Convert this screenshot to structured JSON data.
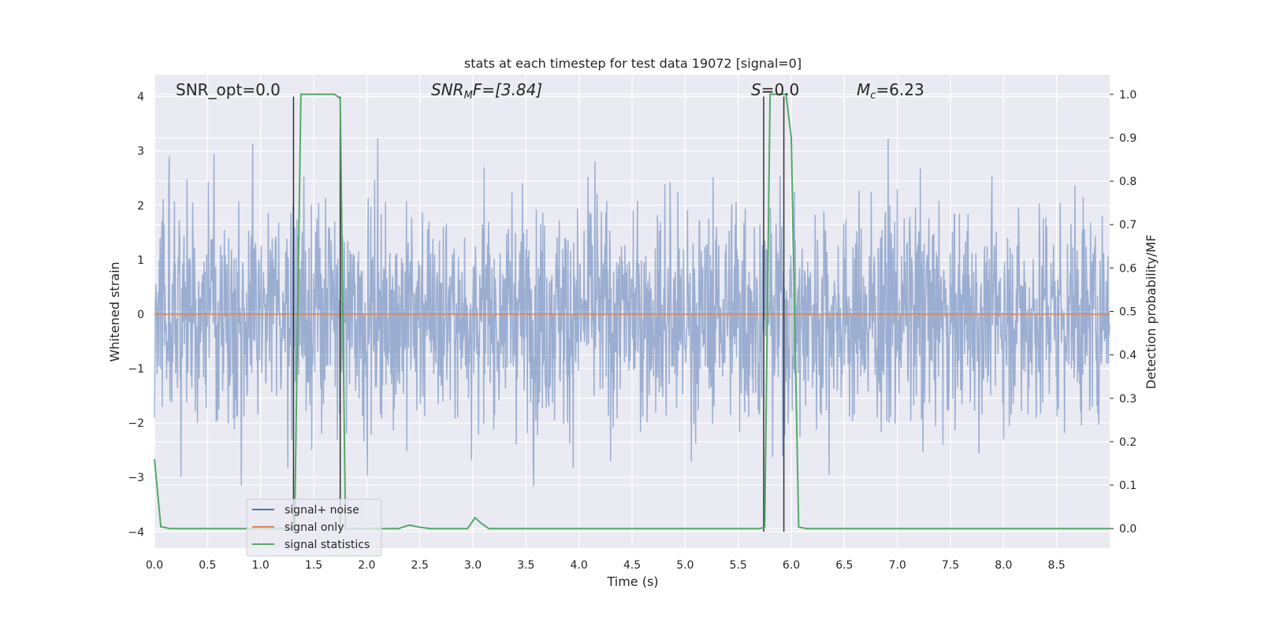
{
  "chart_data": {
    "type": "line",
    "title": "stats at each timestep for test data 19072 [signal=0]",
    "xlabel": "Time (s)",
    "ylabel_left": "Whitened strain",
    "ylabel_right": "Detection probability/MF",
    "xlim": [
      0.0,
      9.0
    ],
    "ylim_left": [
      -4.3,
      4.4
    ],
    "ylim_right": [
      -0.045,
      1.045
    ],
    "grid": true,
    "legend_position": "lower-left",
    "x_ticks": [
      "0.0",
      "0.5",
      "1.0",
      "1.5",
      "2.0",
      "2.5",
      "3.0",
      "3.5",
      "4.0",
      "4.5",
      "5.0",
      "5.5",
      "6.0",
      "6.5",
      "7.0",
      "7.5",
      "8.0",
      "8.5"
    ],
    "y_left_ticks": [
      "4",
      "3",
      "2",
      "1",
      "0",
      "−1",
      "−2",
      "−3",
      "−4"
    ],
    "y_right_ticks": [
      "1.0",
      "0.9",
      "0.8",
      "0.7",
      "0.6",
      "0.5",
      "0.4",
      "0.3",
      "0.2",
      "0.1",
      "0.0"
    ],
    "annotations": {
      "snr_opt": "SNR_opt=0.0",
      "snr_mf_main": "SNR",
      "snr_mf_sub": "M",
      "snr_mf_rest": "F=[3.84]",
      "s_main": "S",
      "s_rest": "=0.0",
      "mc_main": "M",
      "mc_sub": "c",
      "mc_rest": "=6.23"
    },
    "series": [
      {
        "name": "signal+ noise",
        "color": "#4c72b0",
        "axis": "left",
        "description_values": {
          "envelope_upper": 2.3,
          "envelope_lower": -2.3,
          "peak_max": 3.4,
          "peak_min": -3.95
        }
      },
      {
        "name": "signal only",
        "color": "#dd8452",
        "axis": "left",
        "values_x": [
          0.0,
          9.0
        ],
        "values_y": [
          0.0,
          0.0
        ]
      },
      {
        "name": "signal statistics",
        "color": "#55a868",
        "axis": "right",
        "x": [
          0.0,
          0.06,
          0.15,
          1.2,
          1.32,
          1.38,
          1.45,
          1.7,
          1.75,
          1.8,
          1.9,
          2.3,
          2.4,
          2.5,
          2.6,
          2.95,
          3.02,
          3.08,
          3.15,
          5.7,
          5.75,
          5.8,
          5.85,
          5.95,
          6.0,
          6.07,
          6.15,
          9.0
        ],
        "y": [
          0.16,
          0.004,
          0.0,
          0.0,
          0.0,
          1.0,
          1.0,
          1.0,
          0.99,
          0.0,
          0.0,
          0.0,
          0.008,
          0.003,
          0.0,
          0.0,
          0.025,
          0.012,
          0.0,
          0.0,
          0.003,
          1.0,
          1.0,
          1.0,
          0.9,
          0.003,
          0.0,
          0.0
        ]
      }
    ],
    "vertical_lines_x": [
      1.31,
      1.75,
      5.74,
      5.93
    ],
    "vertical_lines_color": "#333333"
  },
  "legend": {
    "items": [
      {
        "label": "signal+ noise",
        "color": "#4c72b0"
      },
      {
        "label": "signal only",
        "color": "#dd8452"
      },
      {
        "label": "signal statistics",
        "color": "#55a868"
      }
    ]
  }
}
